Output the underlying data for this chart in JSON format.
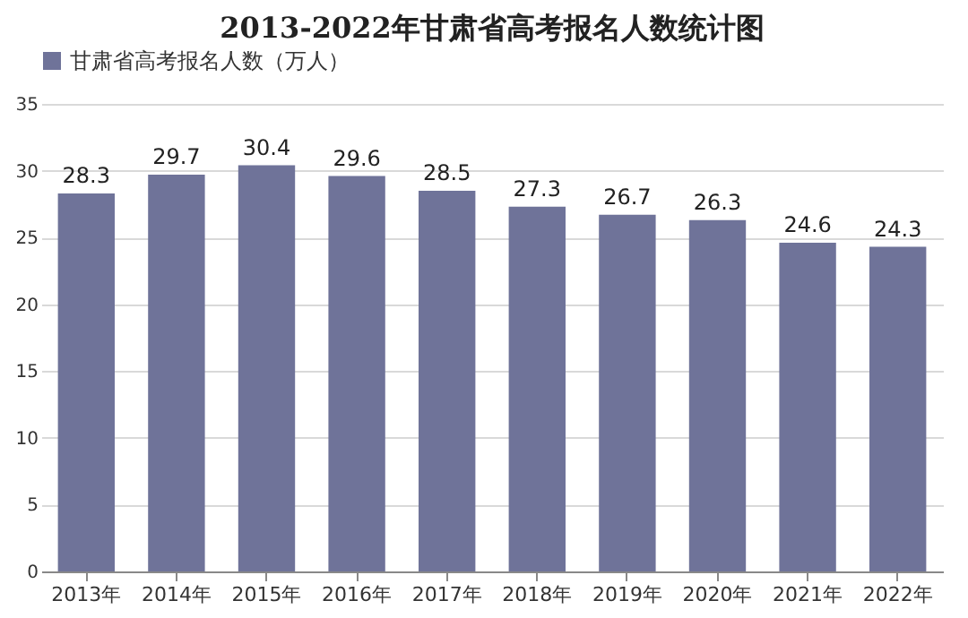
{
  "chart_data": {
    "type": "bar",
    "title": "2013-2022年甘肃省高考报名人数统计图",
    "categories": [
      "2013年",
      "2014年",
      "2015年",
      "2016年",
      "2017年",
      "2018年",
      "2019年",
      "2020年",
      "2021年",
      "2022年"
    ],
    "series": [
      {
        "name": "甘肃省高考报名人数（万人）",
        "color": "#6f7399",
        "values": [
          28.3,
          29.7,
          30.4,
          29.6,
          28.5,
          27.3,
          26.7,
          26.3,
          24.6,
          24.3
        ]
      }
    ],
    "ylim": [
      0,
      35
    ],
    "yticks": [
      0,
      5,
      10,
      15,
      20,
      25,
      30,
      35
    ],
    "grid": "y",
    "legend": "top",
    "data_labels": true
  }
}
